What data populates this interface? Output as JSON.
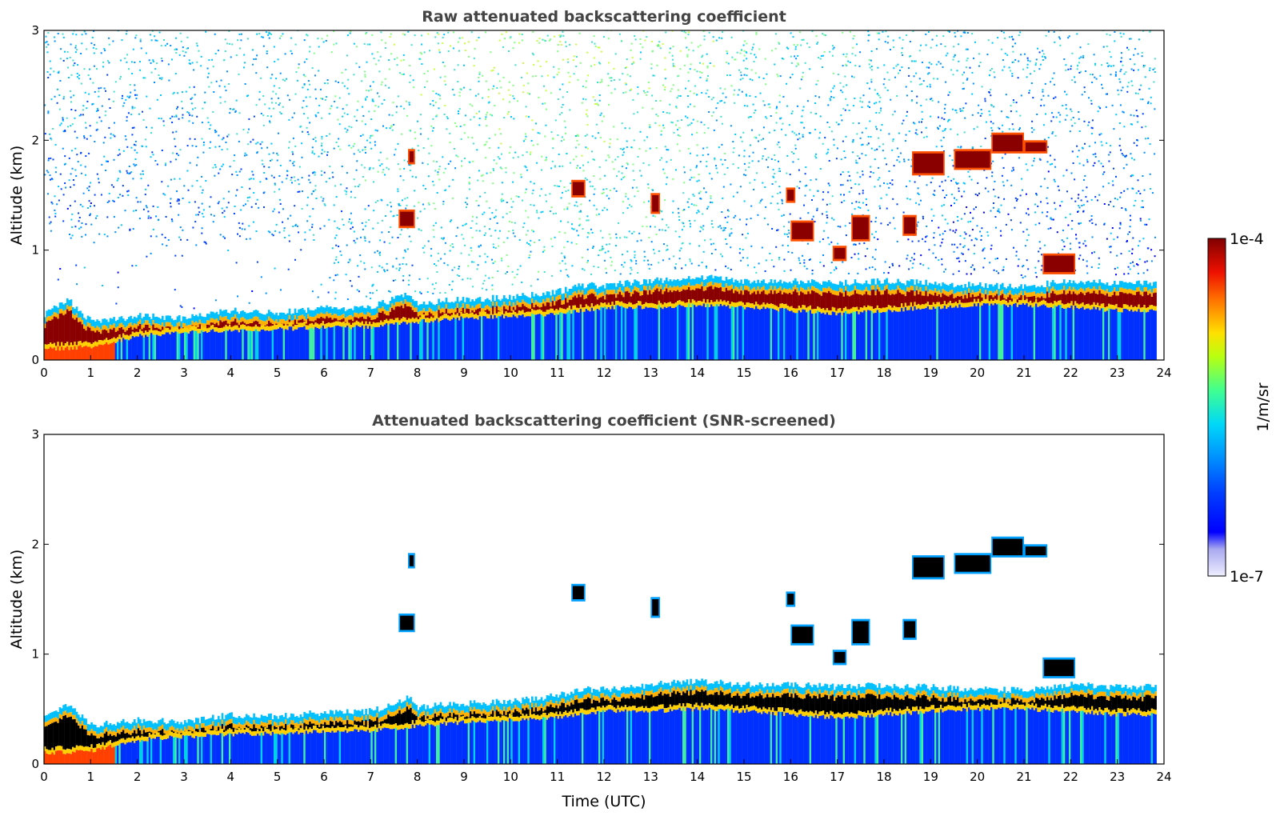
{
  "colorbar": {
    "min_label": "1e-7",
    "max_label": "1e-4",
    "unit_label": "1/m/sr",
    "scale": "log",
    "colormap": "jet",
    "colors": [
      "#eeeeff",
      "#b0b0f0",
      "#6060f0",
      "#0000ff",
      "#0050ff",
      "#00a0ff",
      "#00e0f0",
      "#40ff80",
      "#c0ff00",
      "#ffe000",
      "#ff8000",
      "#ff2000",
      "#b00000",
      "#800000"
    ]
  },
  "xlabel": "Time (UTC)",
  "chart_data": [
    {
      "type": "heatmap",
      "title": "Raw attenuated backscattering coefficient",
      "xlabel": "",
      "ylabel": "Altitude (km)",
      "xlim": [
        0,
        24
      ],
      "ylim": [
        0,
        3
      ],
      "xticks": [
        "0",
        "1",
        "2",
        "3",
        "4",
        "5",
        "6",
        "7",
        "8",
        "9",
        "10",
        "11",
        "12",
        "13",
        "14",
        "15",
        "16",
        "17",
        "18",
        "19",
        "20",
        "21",
        "22",
        "23",
        "24"
      ],
      "yticks": [
        "0",
        "1",
        "2",
        "3"
      ],
      "data_x_end": 23.8,
      "layer_top_km": [
        [
          0.0,
          0.42
        ],
        [
          0.5,
          0.55
        ],
        [
          1.0,
          0.35
        ],
        [
          2.0,
          0.4
        ],
        [
          3.0,
          0.38
        ],
        [
          4.0,
          0.45
        ],
        [
          5.0,
          0.43
        ],
        [
          6.0,
          0.47
        ],
        [
          7.0,
          0.48
        ],
        [
          7.8,
          0.6
        ],
        [
          8.0,
          0.52
        ],
        [
          9.0,
          0.55
        ],
        [
          10.0,
          0.57
        ],
        [
          11.0,
          0.62
        ],
        [
          11.5,
          0.68
        ],
        [
          12.0,
          0.68
        ],
        [
          13.0,
          0.72
        ],
        [
          14.0,
          0.76
        ],
        [
          15.0,
          0.72
        ],
        [
          16.0,
          0.72
        ],
        [
          17.0,
          0.7
        ],
        [
          18.0,
          0.72
        ],
        [
          19.0,
          0.7
        ],
        [
          20.0,
          0.68
        ],
        [
          21.0,
          0.67
        ],
        [
          22.0,
          0.72
        ],
        [
          23.0,
          0.7
        ],
        [
          23.8,
          0.7
        ]
      ],
      "layer_bottom_km": [
        [
          0.0,
          0.1
        ],
        [
          1.0,
          0.12
        ],
        [
          2.0,
          0.22
        ],
        [
          3.0,
          0.25
        ],
        [
          4.0,
          0.27
        ],
        [
          5.0,
          0.28
        ],
        [
          6.0,
          0.3
        ],
        [
          7.0,
          0.3
        ],
        [
          8.0,
          0.35
        ],
        [
          9.0,
          0.38
        ],
        [
          10.0,
          0.4
        ],
        [
          11.0,
          0.42
        ],
        [
          12.0,
          0.48
        ],
        [
          13.0,
          0.48
        ],
        [
          14.0,
          0.5
        ],
        [
          15.0,
          0.48
        ],
        [
          16.0,
          0.45
        ],
        [
          17.0,
          0.42
        ],
        [
          18.0,
          0.45
        ],
        [
          19.0,
          0.48
        ],
        [
          20.0,
          0.5
        ],
        [
          21.0,
          0.5
        ],
        [
          22.0,
          0.48
        ],
        [
          23.0,
          0.45
        ],
        [
          23.8,
          0.45
        ]
      ],
      "cloud_patches": [
        [
          7.8,
          7.95,
          1.8,
          1.9
        ],
        [
          7.6,
          7.95,
          1.22,
          1.35
        ],
        [
          11.3,
          11.6,
          1.5,
          1.62
        ],
        [
          13.0,
          13.2,
          1.35,
          1.5
        ],
        [
          15.9,
          16.1,
          1.45,
          1.55
        ],
        [
          16.0,
          16.5,
          1.1,
          1.25
        ],
        [
          16.9,
          17.2,
          0.92,
          1.02
        ],
        [
          17.3,
          17.7,
          1.1,
          1.3
        ],
        [
          18.4,
          18.7,
          1.15,
          1.3
        ],
        [
          18.6,
          19.3,
          1.7,
          1.88
        ],
        [
          19.5,
          20.3,
          1.75,
          1.9
        ],
        [
          20.3,
          21.0,
          1.9,
          2.05
        ],
        [
          21.0,
          21.5,
          1.9,
          1.98
        ],
        [
          21.4,
          22.1,
          0.8,
          0.95
        ]
      ]
    },
    {
      "type": "heatmap",
      "title": "Attenuated backscattering coefficient (SNR-screened)",
      "xlabel": "Time (UTC)",
      "ylabel": "Altitude (km)",
      "xlim": [
        0,
        24
      ],
      "ylim": [
        0,
        3
      ],
      "xticks": [
        "0",
        "1",
        "2",
        "3",
        "4",
        "5",
        "6",
        "7",
        "8",
        "9",
        "10",
        "11",
        "12",
        "13",
        "14",
        "15",
        "16",
        "17",
        "18",
        "19",
        "20",
        "21",
        "22",
        "23",
        "24"
      ],
      "yticks": [
        "0",
        "1",
        "2",
        "3"
      ],
      "data_x_end": 23.8,
      "screened": true,
      "saturated_color": "#000000"
    }
  ]
}
